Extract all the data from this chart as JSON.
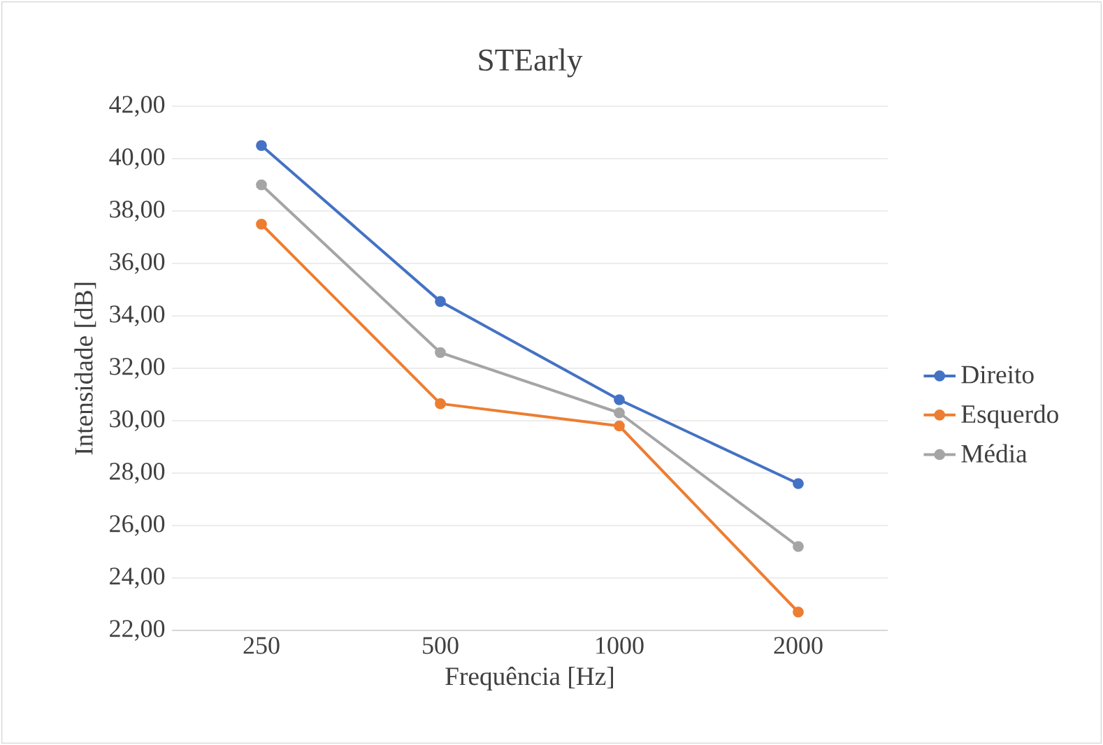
{
  "chart_data": {
    "type": "line",
    "title": "STEarly",
    "xlabel": "Frequência [Hz]",
    "ylabel": "Intensidade [dB]",
    "categories": [
      "250",
      "500",
      "1000",
      "2000"
    ],
    "series": [
      {
        "name": "Direito",
        "color": "#4472c4",
        "values": [
          40.5,
          34.55,
          30.8,
          27.6
        ]
      },
      {
        "name": "Esquerdo",
        "color": "#ed7d31",
        "values": [
          37.5,
          30.65,
          29.8,
          22.7
        ]
      },
      {
        "name": "Média",
        "color": "#a5a5a5",
        "values": [
          39.0,
          32.6,
          30.3,
          25.2
        ]
      }
    ],
    "ylim": [
      22,
      42
    ],
    "yticks": [
      {
        "value": 22,
        "label": "22,00"
      },
      {
        "value": 24,
        "label": "24,00"
      },
      {
        "value": 26,
        "label": "26,00"
      },
      {
        "value": 28,
        "label": "28,00"
      },
      {
        "value": 30,
        "label": "30,00"
      },
      {
        "value": 32,
        "label": "32,00"
      },
      {
        "value": 34,
        "label": "34,00"
      },
      {
        "value": 36,
        "label": "36,00"
      },
      {
        "value": 38,
        "label": "38,00"
      },
      {
        "value": 40,
        "label": "40,00"
      },
      {
        "value": 42,
        "label": "42,00"
      }
    ],
    "grid": "y",
    "legend": "right",
    "marker": "circle",
    "line_style": "solid"
  }
}
